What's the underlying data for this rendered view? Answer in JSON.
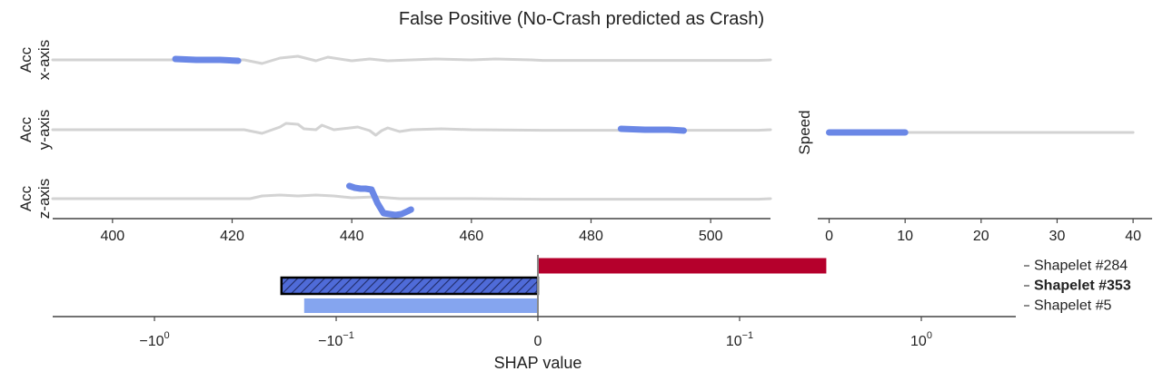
{
  "title": "False Positive (No-Crash predicted as Crash)",
  "colors": {
    "signal": "#d3d3d3",
    "shapelet": "#6a87e6",
    "positive_bar": "#b5002c",
    "negative_hatched": "#4f6bd8",
    "negative_light": "#85a5ef",
    "axis": "#444444",
    "zero_line": "#888888"
  },
  "chart_data": [
    {
      "type": "line",
      "name": "time-series-panels",
      "x_ticks": [
        400,
        420,
        440,
        460,
        480,
        500
      ],
      "xlim": [
        390,
        510
      ],
      "rows": [
        {
          "ylabel": [
            "Acc",
            "x-axis"
          ],
          "shapelet": {
            "x": [
              410.5,
              414,
              418,
              421
            ]
          }
        },
        {
          "ylabel": [
            "Acc",
            "y-axis"
          ],
          "shapelet": {
            "x": [
              485,
              489,
              493,
              495.5
            ]
          }
        },
        {
          "ylabel": [
            "Acc",
            "z-axis"
          ],
          "shapelet": {
            "x": [
              439.6,
              440.5,
              441.5,
              442.3,
              443.3,
              444.3,
              445.3,
              446.3,
              447.3,
              448.3,
              449.3,
              449.9
            ]
          }
        }
      ]
    },
    {
      "type": "line",
      "name": "speed-panel",
      "ylabel": "Speed",
      "x_ticks": [
        0,
        10,
        20,
        30,
        40
      ],
      "xlim": [
        -1.5,
        42.5
      ],
      "signal": {
        "x": [
          0,
          40
        ]
      },
      "shapelet": {
        "x": [
          0,
          10
        ]
      }
    },
    {
      "type": "bar",
      "orientation": "horizontal",
      "xscale": "symlog",
      "xlabel": "SHAP value",
      "x_ticks": [
        {
          "value": -1,
          "label": "−10",
          "exp": "0"
        },
        {
          "value": -0.1,
          "label": "−10",
          "exp": "−1"
        },
        {
          "value": 0,
          "label": "0",
          "exp": ""
        },
        {
          "value": 0.1,
          "label": "10",
          "exp": "−1"
        },
        {
          "value": 1,
          "label": "10",
          "exp": "0"
        }
      ],
      "categories": [
        "Shapelet #284",
        "Shapelet #353",
        "Shapelet #5"
      ],
      "bold": [
        false,
        true,
        false
      ],
      "values": [
        0.3,
        -0.2,
        -0.15
      ]
    }
  ]
}
